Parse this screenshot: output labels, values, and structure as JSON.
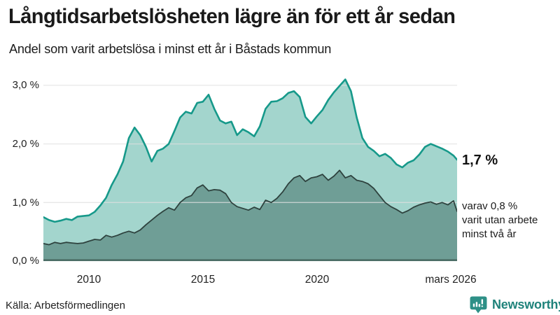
{
  "header": {
    "title": "Långtidsarbetslösheten lägre än för ett år sedan",
    "subtitle": "Andel som varit arbetslösa i minst ett år i Båstads kommun"
  },
  "chart_data": {
    "type": "area",
    "title": "Långtidsarbetslösheten lägre än för ett år sedan",
    "subtitle": "Andel som varit arbetslösa i minst ett år i Båstads kommun",
    "grid": "horizontal",
    "legend_position": "none",
    "x_label": "",
    "y_label": "",
    "x_range": [
      2008,
      2026.17
    ],
    "ylim": [
      0,
      3.26
    ],
    "y_axis": {
      "ticks": [
        {
          "label": "0,0 %",
          "value": 0
        },
        {
          "label": "1,0 %",
          "value": 1
        },
        {
          "label": "2,0 %",
          "value": 2
        },
        {
          "label": "3,0 %",
          "value": 3
        }
      ]
    },
    "x_axis": {
      "ticks": [
        {
          "label": "2010",
          "year": 2010
        },
        {
          "label": "2015",
          "year": 2015
        },
        {
          "label": "2020",
          "year": 2020
        },
        {
          "label": "mars 2026",
          "year": 2026.17
        }
      ]
    },
    "x": [
      2008.0,
      2008.25,
      2008.5,
      2008.75,
      2009.0,
      2009.25,
      2009.5,
      2009.75,
      2010.0,
      2010.25,
      2010.5,
      2010.75,
      2011.0,
      2011.25,
      2011.5,
      2011.75,
      2012.0,
      2012.25,
      2012.5,
      2012.75,
      2013.0,
      2013.25,
      2013.5,
      2013.75,
      2014.0,
      2014.25,
      2014.5,
      2014.75,
      2015.0,
      2015.25,
      2015.5,
      2015.75,
      2016.0,
      2016.25,
      2016.5,
      2016.75,
      2017.0,
      2017.25,
      2017.5,
      2017.75,
      2018.0,
      2018.25,
      2018.5,
      2018.75,
      2019.0,
      2019.25,
      2019.5,
      2019.75,
      2020.0,
      2020.25,
      2020.5,
      2020.75,
      2021.0,
      2021.25,
      2021.5,
      2021.75,
      2022.0,
      2022.25,
      2022.5,
      2022.75,
      2023.0,
      2023.25,
      2023.5,
      2023.75,
      2024.0,
      2024.25,
      2024.5,
      2024.75,
      2025.0,
      2025.25,
      2025.5,
      2025.75,
      2026.0,
      2026.17
    ],
    "series": [
      {
        "name": "Arbetslösa minst ett år",
        "line_color": "#16998a",
        "fill_color": "#a3d5cd",
        "line_width": 2.6,
        "values": [
          0.75,
          0.7,
          0.67,
          0.69,
          0.72,
          0.7,
          0.76,
          0.77,
          0.78,
          0.84,
          0.95,
          1.08,
          1.3,
          1.48,
          1.7,
          2.1,
          2.28,
          2.15,
          1.95,
          1.7,
          1.88,
          1.92,
          2.0,
          2.22,
          2.45,
          2.55,
          2.52,
          2.7,
          2.72,
          2.84,
          2.6,
          2.4,
          2.35,
          2.38,
          2.15,
          2.25,
          2.2,
          2.13,
          2.3,
          2.6,
          2.72,
          2.73,
          2.78,
          2.87,
          2.9,
          2.8,
          2.46,
          2.35,
          2.47,
          2.58,
          2.75,
          2.88,
          2.99,
          3.1,
          2.9,
          2.45,
          2.1,
          1.95,
          1.88,
          1.79,
          1.83,
          1.76,
          1.65,
          1.6,
          1.68,
          1.72,
          1.82,
          1.95,
          2.0,
          1.96,
          1.92,
          1.87,
          1.8,
          1.73
        ]
      },
      {
        "name": "Arbetslösa minst två år",
        "line_color": "#2e423e",
        "fill_color": "#6f9e96",
        "line_width": 1.8,
        "values": [
          0.3,
          0.28,
          0.32,
          0.3,
          0.32,
          0.31,
          0.3,
          0.31,
          0.34,
          0.37,
          0.36,
          0.44,
          0.41,
          0.44,
          0.48,
          0.51,
          0.48,
          0.53,
          0.62,
          0.7,
          0.78,
          0.85,
          0.91,
          0.87,
          1.0,
          1.08,
          1.12,
          1.25,
          1.3,
          1.2,
          1.22,
          1.21,
          1.15,
          1.0,
          0.93,
          0.9,
          0.87,
          0.92,
          0.88,
          1.04,
          1.0,
          1.07,
          1.18,
          1.32,
          1.42,
          1.46,
          1.36,
          1.42,
          1.44,
          1.48,
          1.38,
          1.45,
          1.55,
          1.42,
          1.46,
          1.38,
          1.36,
          1.32,
          1.24,
          1.12,
          1.0,
          0.93,
          0.88,
          0.82,
          0.86,
          0.92,
          0.96,
          0.99,
          1.01,
          0.97,
          1.0,
          0.96,
          1.03,
          0.85
        ]
      }
    ],
    "annotations": {
      "latest_total": "1,7 %",
      "latest_two_year": "varav 0,8 %\nvarit utan arbete\nminst två år"
    },
    "gridline_color": "#e0e0e0",
    "axis_line_color": "#4c6e67"
  },
  "footer": {
    "source": "Källa: Arbetsförmedlingen",
    "brand": "Newsworthy",
    "brand_color": "#1f837b",
    "brand_icon_color": "#2e9087"
  }
}
